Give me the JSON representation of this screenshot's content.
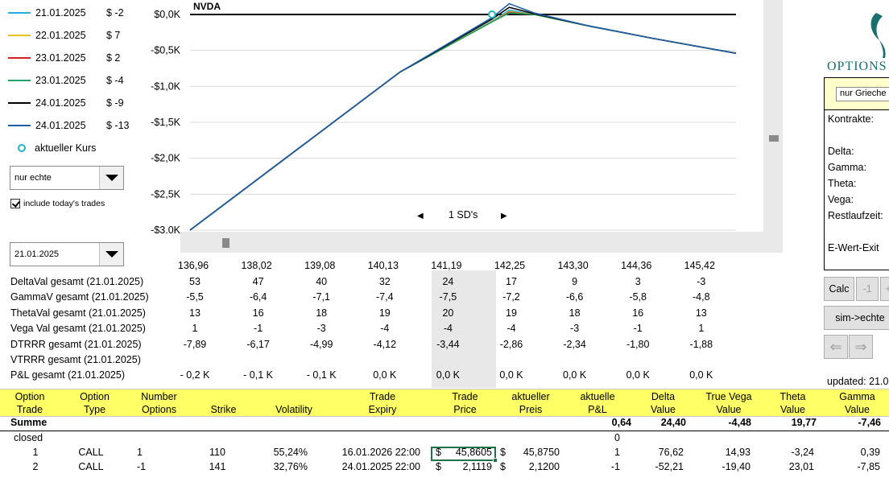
{
  "legend": [
    {
      "date": "21.01.2025",
      "value": "$ -2",
      "color": "#27a9e1"
    },
    {
      "date": "22.01.2025",
      "value": "$ 7",
      "color": "#e8c21a"
    },
    {
      "date": "23.01.2025",
      "value": "$ 2",
      "color": "#d0231f"
    },
    {
      "date": "23.01.2025",
      "value": "$ -4",
      "color": "#21a366"
    },
    {
      "date": "24.01.2025",
      "value": "$ -9",
      "color": "#000000"
    },
    {
      "date": "24.01.2025",
      "value": "$ -13",
      "color": "#1f5fa8"
    }
  ],
  "legend_current": "aktueller Kurs",
  "filter_dropdown": "nur echte",
  "include_trades_label": "include today's trades",
  "date_dropdown": "21.01.2025",
  "chart": {
    "title": "NVDA",
    "y_ticks": [
      "$0,0K",
      "-$0,5K",
      "-$1,0K",
      "-$1,5K",
      "-$2,0K",
      "-$2,5K",
      "-$3,0K"
    ],
    "sd_label": "1 SD's",
    "prev_glyph": "◀",
    "next_glyph": "▶"
  },
  "chart_data": {
    "type": "line",
    "title": "NVDA",
    "xlabel": "",
    "ylabel": "",
    "ylim": [
      -3000,
      0
    ],
    "xlim": [
      134,
      147
    ],
    "x": [
      134,
      136.5,
      139,
      141.2,
      141.6,
      142.2,
      143.5,
      145,
      147
    ],
    "series": [
      {
        "name": "21.01.2025",
        "color": "#27a9e1",
        "values": [
          -3000,
          -1900,
          -800,
          -90,
          60,
          0,
          -160,
          -330,
          -540
        ]
      },
      {
        "name": "22.01.2025",
        "color": "#e8c21a",
        "values": [
          -3000,
          -1900,
          -800,
          -95,
          40,
          0,
          -160,
          -330,
          -540
        ]
      },
      {
        "name": "23.01.2025",
        "color": "#d0231f",
        "values": [
          -3000,
          -1900,
          -800,
          -100,
          30,
          0,
          -160,
          -330,
          -540
        ]
      },
      {
        "name": "23.01.2025",
        "color": "#21a366",
        "values": [
          -3000,
          -1900,
          -800,
          -100,
          20,
          0,
          -160,
          -330,
          -540
        ]
      },
      {
        "name": "24.01.2025",
        "color": "#000000",
        "values": [
          -3000,
          -1900,
          -800,
          -60,
          100,
          10,
          -160,
          -330,
          -540
        ]
      },
      {
        "name": "24.01.2025",
        "color": "#1f5fa8",
        "values": [
          -3000,
          -1900,
          -800,
          -40,
          150,
          20,
          -160,
          -330,
          -540
        ]
      }
    ],
    "current_price_marker": {
      "x": 141.19,
      "y": 0
    },
    "zero_line": true
  },
  "metrics": {
    "prices": [
      "136,96",
      "138,02",
      "139,08",
      "140,13",
      "141,19",
      "142,25",
      "143,30",
      "144,36",
      "145,42"
    ],
    "rows": [
      {
        "label": "DeltaVal gesamt (21.01.2025)",
        "values": [
          "53",
          "47",
          "40",
          "32",
          "24",
          "17",
          "9",
          "3",
          "-3"
        ]
      },
      {
        "label": "GammaV gesamt (21.01.2025)",
        "values": [
          "-5,5",
          "-6,4",
          "-7,1",
          "-7,4",
          "-7,5",
          "-7,2",
          "-6,6",
          "-5,8",
          "-4,8"
        ]
      },
      {
        "label": "ThetaVal gesamt (21.01.2025)",
        "values": [
          "13",
          "16",
          "18",
          "19",
          "20",
          "19",
          "18",
          "16",
          "13"
        ]
      },
      {
        "label": "Vega Val gesamt (21.01.2025)",
        "values": [
          "1",
          "-1",
          "-3",
          "-4",
          "-4",
          "-4",
          "-3",
          "-1",
          "1"
        ]
      },
      {
        "label": "DTRRR gesamt (21.01.2025)",
        "values": [
          "-7,89",
          "-6,17",
          "-4,99",
          "-4,12",
          "-3,44",
          "-2,86",
          "-2,34",
          "-1,80",
          "-1,88"
        ]
      },
      {
        "label": "VTRRR gesamt (21.01.2025)",
        "values": [
          "",
          "",
          "",
          "",
          "",
          "",
          "",
          "",
          ""
        ]
      },
      {
        "label": "P&L gesamt (21.01.2025)",
        "values": [
          "- 0,2 K",
          "- 0,1 K",
          "- 0,1 K",
          "0,0 K",
          "0,0 K",
          "0,0 K",
          "0,0 K",
          "0,0 K",
          "0,0 K"
        ]
      }
    ]
  },
  "grid": {
    "headers": [
      {
        "l1": "Option",
        "l2": "Trade"
      },
      {
        "l1": "Option",
        "l2": "Type"
      },
      {
        "l1": "Number",
        "l2": "Options"
      },
      {
        "l1": "",
        "l2": "Strike"
      },
      {
        "l1": "",
        "l2": "Volatility"
      },
      {
        "l1": "Trade",
        "l2": "Expiry"
      },
      {
        "l1": "Trade",
        "l2": "Price"
      },
      {
        "l1": "aktueller",
        "l2": "Preis"
      },
      {
        "l1": "aktuelle",
        "l2": "P&L"
      },
      {
        "l1": "Delta",
        "l2": "Value"
      },
      {
        "l1": "True Vega",
        "l2": "Value"
      },
      {
        "l1": "Theta",
        "l2": "Value"
      },
      {
        "l1": "Gamma",
        "l2": "Value"
      }
    ],
    "summary": {
      "label": "Summe",
      "pnl": "0,64",
      "delta": "24,40",
      "vega": "-4,48",
      "theta": "19,77",
      "gamma": "-7,46"
    },
    "closed_label": "closed",
    "closed_pnl": "0",
    "rows": [
      {
        "trade": "1",
        "type": "CALL",
        "number": "1",
        "strike": "110",
        "vol": "55,24%",
        "expiry": "16.01.2026 22:00",
        "tp_cur": "$",
        "tp": "45,8605",
        "ap_cur": "$",
        "ap": "45,8750",
        "pnl": "1",
        "delta": "76,62",
        "vega": "14,93",
        "theta": "-3,24",
        "gamma": "0,39"
      },
      {
        "trade": "2",
        "type": "CALL",
        "number": "-1",
        "strike": "141",
        "vol": "32,76%",
        "expiry": "24.01.2025 22:00",
        "tp_cur": "$",
        "tp": "2,1119",
        "ap_cur": "$",
        "ap": "2,1200",
        "pnl": "-1",
        "delta": "-52,21",
        "vega": "-19,40",
        "theta": "23,01",
        "gamma": "-7,85"
      }
    ]
  },
  "right_panel": {
    "logo_text": "OPTIONS",
    "select_value": "nur Grieche",
    "labels": [
      "Kontrakte:",
      "Delta:",
      "Gamma:",
      "Theta:",
      "Vega:",
      "Restlaufzeit:",
      "E-Wert-Exit"
    ],
    "calc_button": "Calc",
    "minus_button": "-1",
    "plus_button": "+",
    "sim_button": "sim->echte",
    "back_glyph": "⇐",
    "forward_glyph": "⇒",
    "updated": "updated: 21.0"
  }
}
